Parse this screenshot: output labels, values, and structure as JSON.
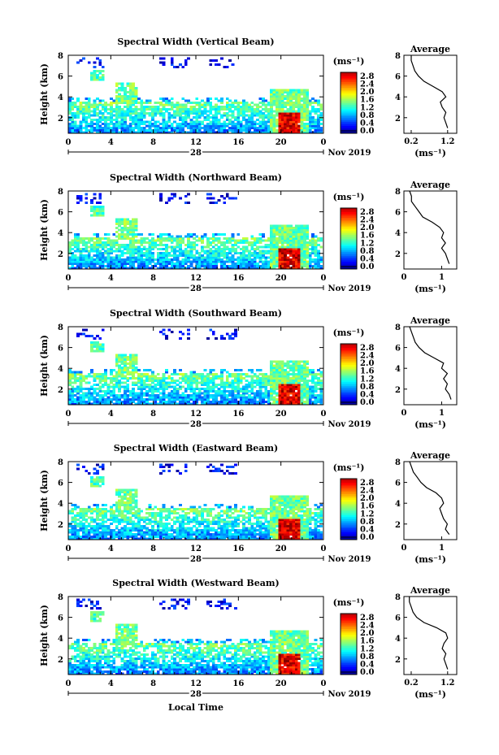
{
  "figure": {
    "x_axis_title": "Local Time",
    "date_label": "Nov 2019",
    "day_label": "28",
    "colorbar_unit": "(ms⁻¹)",
    "average_title": "Average",
    "average_unit": "(ms⁻¹)"
  },
  "chart_data": [
    {
      "type": "heatmap",
      "title": "Spectral Width (Vertical Beam)",
      "xlabel": "",
      "ylabel": "Height (km)",
      "xticks": [
        "0",
        "4",
        "8",
        "12",
        "16",
        "20",
        "0"
      ],
      "xlim": [
        0,
        24
      ],
      "yticks": [
        "2",
        "4",
        "6",
        "8"
      ],
      "ylim": [
        0.5,
        8
      ],
      "colorbar_ticks": [
        "0.0",
        "0.4",
        "0.8",
        "1.2",
        "1.6",
        "2.0",
        "2.4",
        "2.8"
      ],
      "colorbar_range": [
        0,
        3
      ],
      "profile": {
        "title": "Average",
        "xticks": [
          "0.2",
          "1.2"
        ],
        "xlim": [
          0.0,
          1.45
        ],
        "yticks": [
          "2",
          "4",
          "6",
          "8"
        ],
        "ylim": [
          0.5,
          8
        ],
        "height": [
          1.0,
          1.5,
          2.0,
          2.5,
          3.0,
          3.5,
          4.0,
          4.5,
          5.0,
          5.5,
          6.0,
          6.5,
          7.0,
          7.5,
          8.0
        ],
        "value": [
          1.2,
          1.15,
          1.1,
          1.15,
          1.05,
          1.0,
          1.15,
          1.05,
          0.8,
          0.55,
          0.4,
          0.3,
          0.25,
          0.2,
          0.2
        ]
      }
    },
    {
      "type": "heatmap",
      "title": "Spectral Width (Northward Beam)",
      "xlabel": "",
      "ylabel": "Height (km)",
      "xticks": [
        "0",
        "4",
        "8",
        "12",
        "16",
        "20",
        "0"
      ],
      "xlim": [
        0,
        24
      ],
      "yticks": [
        "2",
        "4",
        "6",
        "8"
      ],
      "ylim": [
        0.5,
        8
      ],
      "colorbar_ticks": [
        "0.0",
        "0.4",
        "0.8",
        "1.2",
        "1.6",
        "2.0",
        "2.4",
        "2.8"
      ],
      "colorbar_range": [
        0,
        3
      ],
      "profile": {
        "title": "Average",
        "xticks": [
          "0",
          "1"
        ],
        "xlim": [
          0,
          1.4
        ],
        "yticks": [
          "2",
          "4",
          "6",
          "8"
        ],
        "ylim": [
          0.5,
          8
        ],
        "height": [
          1.0,
          1.5,
          2.0,
          2.5,
          3.0,
          3.5,
          4.0,
          4.5,
          5.0,
          5.5,
          6.0,
          6.5,
          7.0,
          7.5,
          8.0
        ],
        "value": [
          1.2,
          1.15,
          1.1,
          1.0,
          1.1,
          1.0,
          1.05,
          0.95,
          0.75,
          0.5,
          0.4,
          0.3,
          0.2,
          0.2,
          0.15
        ]
      }
    },
    {
      "type": "heatmap",
      "title": "Spectral Width (Southward Beam)",
      "xlabel": "",
      "ylabel": "Height (km)",
      "xticks": [
        "0",
        "4",
        "8",
        "12",
        "16",
        "20",
        "0"
      ],
      "xlim": [
        0,
        24
      ],
      "yticks": [
        "2",
        "4",
        "6",
        "8"
      ],
      "ylim": [
        0.5,
        8
      ],
      "colorbar_ticks": [
        "0.0",
        "0.4",
        "0.8",
        "1.2",
        "1.6",
        "2.0",
        "2.4",
        "2.8"
      ],
      "colorbar_range": [
        0,
        3
      ],
      "profile": {
        "title": "Average",
        "xticks": [
          "0",
          "1"
        ],
        "xlim": [
          0,
          1.4
        ],
        "yticks": [
          "2",
          "4",
          "6",
          "8"
        ],
        "ylim": [
          0.5,
          8
        ],
        "height": [
          1.0,
          1.5,
          2.0,
          2.5,
          3.0,
          3.5,
          4.0,
          4.5,
          5.0,
          5.5,
          6.0,
          6.5,
          7.0,
          7.5,
          8.0
        ],
        "value": [
          1.25,
          1.2,
          1.1,
          1.15,
          1.05,
          1.15,
          1.0,
          1.05,
          0.8,
          0.55,
          0.4,
          0.3,
          0.25,
          0.2,
          0.15
        ]
      }
    },
    {
      "type": "heatmap",
      "title": "Spectral Width (Eastward Beam)",
      "xlabel": "",
      "ylabel": "Height (km)",
      "xticks": [
        "0",
        "4",
        "8",
        "12",
        "16",
        "20",
        "0"
      ],
      "xlim": [
        0,
        24
      ],
      "yticks": [
        "2",
        "4",
        "6",
        "8"
      ],
      "ylim": [
        0.5,
        8
      ],
      "colorbar_ticks": [
        "0.0",
        "0.4",
        "0.8",
        "1.2",
        "1.6",
        "2.0",
        "2.4",
        "2.8"
      ],
      "colorbar_range": [
        0,
        3
      ],
      "profile": {
        "title": "Average",
        "xticks": [
          "0",
          "1"
        ],
        "xlim": [
          0,
          1.4
        ],
        "yticks": [
          "2",
          "4",
          "6",
          "8"
        ],
        "ylim": [
          0.5,
          8
        ],
        "height": [
          1.0,
          1.5,
          2.0,
          2.5,
          3.0,
          3.5,
          4.0,
          4.5,
          5.0,
          5.5,
          6.0,
          6.5,
          7.0,
          7.5,
          8.0
        ],
        "value": [
          1.2,
          1.1,
          1.15,
          1.05,
          1.0,
          0.95,
          1.05,
          1.0,
          0.85,
          0.6,
          0.45,
          0.35,
          0.25,
          0.2,
          0.15
        ]
      }
    },
    {
      "type": "heatmap",
      "title": "Spectral Width (Westward Beam)",
      "xlabel": "Local Time",
      "ylabel": "Height (km)",
      "xticks": [
        "0",
        "4",
        "8",
        "12",
        "16",
        "20",
        "0"
      ],
      "xlim": [
        0,
        24
      ],
      "yticks": [
        "2",
        "4",
        "6",
        "8"
      ],
      "ylim": [
        0.5,
        8
      ],
      "colorbar_ticks": [
        "0.0",
        "0.4",
        "0.8",
        "1.2",
        "1.6",
        "2.0",
        "2.4",
        "2.8"
      ],
      "colorbar_range": [
        0,
        3
      ],
      "profile": {
        "title": "Average",
        "xticks": [
          "0.2",
          "1.2"
        ],
        "xlim": [
          0.0,
          1.45
        ],
        "yticks": [
          "2",
          "4",
          "6",
          "8"
        ],
        "ylim": [
          0.5,
          8
        ],
        "height": [
          1.0,
          1.5,
          2.0,
          2.5,
          3.0,
          3.5,
          4.0,
          4.5,
          5.0,
          5.5,
          6.0,
          6.5,
          7.0,
          7.5,
          8.0
        ],
        "value": [
          1.2,
          1.15,
          1.1,
          1.15,
          1.05,
          1.1,
          1.2,
          1.15,
          0.9,
          0.55,
          0.35,
          0.25,
          0.2,
          0.15,
          0.15
        ]
      }
    }
  ]
}
